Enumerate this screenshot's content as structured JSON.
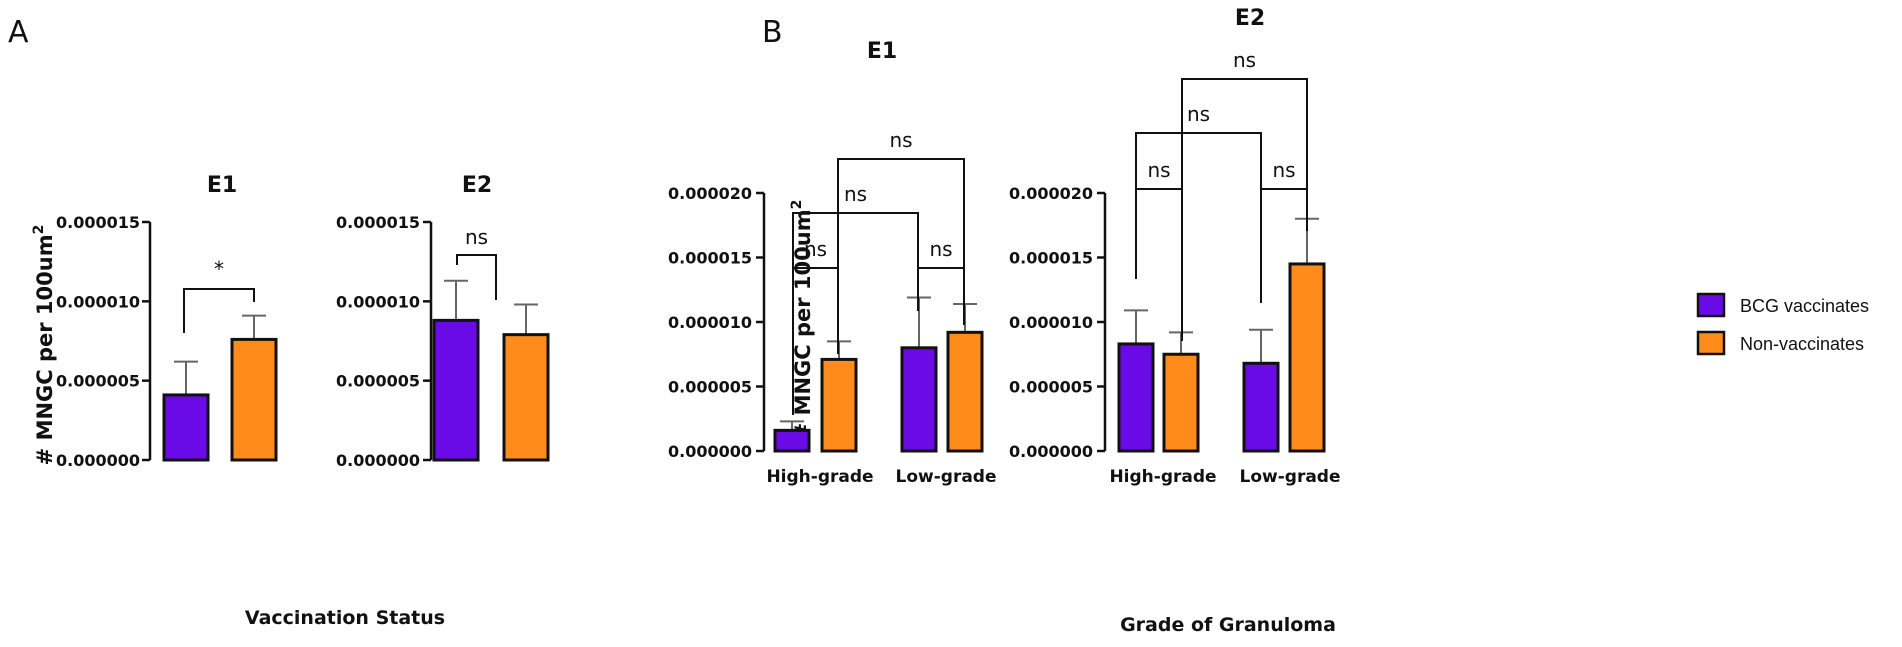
{
  "panels": {
    "a": "A",
    "b": "B"
  },
  "colors": {
    "bcg": "#6a0ae6",
    "non": "#ff8c1a",
    "axis": "#111111",
    "error": "#666666"
  },
  "legend": {
    "bcg": "BCG vaccinates",
    "non": "Non-vaccinates"
  },
  "ylabel_main": "# MNGC per 100um",
  "ylabel_sup": "2",
  "xlabel_a": "Vaccination  Status",
  "xlabel_b": "Grade of Granuloma",
  "chart_data": [
    {
      "type": "bar",
      "panel": "A",
      "title": "E1",
      "ylabel": "# MNGC per 100um2",
      "ylim": [
        0,
        1.5e-05
      ],
      "yticks": [
        "0.000000",
        "0.000005",
        "0.000010",
        "0.000015"
      ],
      "series": [
        {
          "name": "BCG vaccinates",
          "values": [
            4.1e-06
          ],
          "errors": [
            2.1e-06
          ]
        },
        {
          "name": "Non-vaccinates",
          "values": [
            7.6e-06
          ],
          "errors": [
            1.5e-06
          ]
        }
      ],
      "comparisons": [
        {
          "label": "*"
        }
      ]
    },
    {
      "type": "bar",
      "panel": "A",
      "title": "E2",
      "ylim": [
        0,
        1.5e-05
      ],
      "yticks": [
        "0.000000",
        "0.000005",
        "0.000010",
        "0.000015"
      ],
      "series": [
        {
          "name": "BCG vaccinates",
          "values": [
            8.8e-06
          ],
          "errors": [
            2.5e-06
          ]
        },
        {
          "name": "Non-vaccinates",
          "values": [
            7.9e-06
          ],
          "errors": [
            1.9e-06
          ]
        }
      ],
      "comparisons": [
        {
          "label": "ns"
        }
      ]
    },
    {
      "type": "bar",
      "panel": "B",
      "title": "E1",
      "xlabel": "Grade of Granuloma",
      "ylabel": "# MNGC per 100um2",
      "ylim": [
        0,
        2e-05
      ],
      "yticks": [
        "0.000000",
        "0.000005",
        "0.000010",
        "0.000015",
        "0.000020"
      ],
      "categories": [
        "High-grade",
        "Low-grade"
      ],
      "series": [
        {
          "name": "BCG vaccinates",
          "values": [
            1.6e-06,
            8e-06
          ],
          "errors": [
            7e-07,
            3.9e-06
          ]
        },
        {
          "name": "Non-vaccinates",
          "values": [
            7.1e-06,
            9.2e-06
          ],
          "errors": [
            1.4e-06,
            2.2e-06
          ]
        }
      ],
      "comparisons": [
        {
          "label": "ns",
          "between": "High-grade BCG vs Non"
        },
        {
          "label": "ns",
          "between": "Low-grade BCG vs Non"
        },
        {
          "label": "ns",
          "between": "BCG High vs Low"
        },
        {
          "label": "ns",
          "between": "Non High vs Low"
        }
      ]
    },
    {
      "type": "bar",
      "panel": "B",
      "title": "E2",
      "xlabel": "Grade of Granuloma",
      "ylim": [
        0,
        2e-05
      ],
      "yticks": [
        "0.000000",
        "0.000005",
        "0.000010",
        "0.000015",
        "0.000020"
      ],
      "categories": [
        "High-grade",
        "Low-grade"
      ],
      "series": [
        {
          "name": "BCG vaccinates",
          "values": [
            8.3e-06,
            6.8e-06
          ],
          "errors": [
            2.6e-06,
            2.6e-06
          ]
        },
        {
          "name": "Non-vaccinates",
          "values": [
            7.5e-06,
            1.45e-05
          ],
          "errors": [
            1.7e-06,
            3.5e-06
          ]
        }
      ],
      "comparisons": [
        {
          "label": "ns",
          "between": "High-grade BCG vs Non"
        },
        {
          "label": "ns",
          "between": "Low-grade BCG vs Non"
        },
        {
          "label": "ns",
          "between": "BCG High vs Low"
        },
        {
          "label": "ns",
          "between": "Non High vs Low"
        }
      ]
    }
  ]
}
